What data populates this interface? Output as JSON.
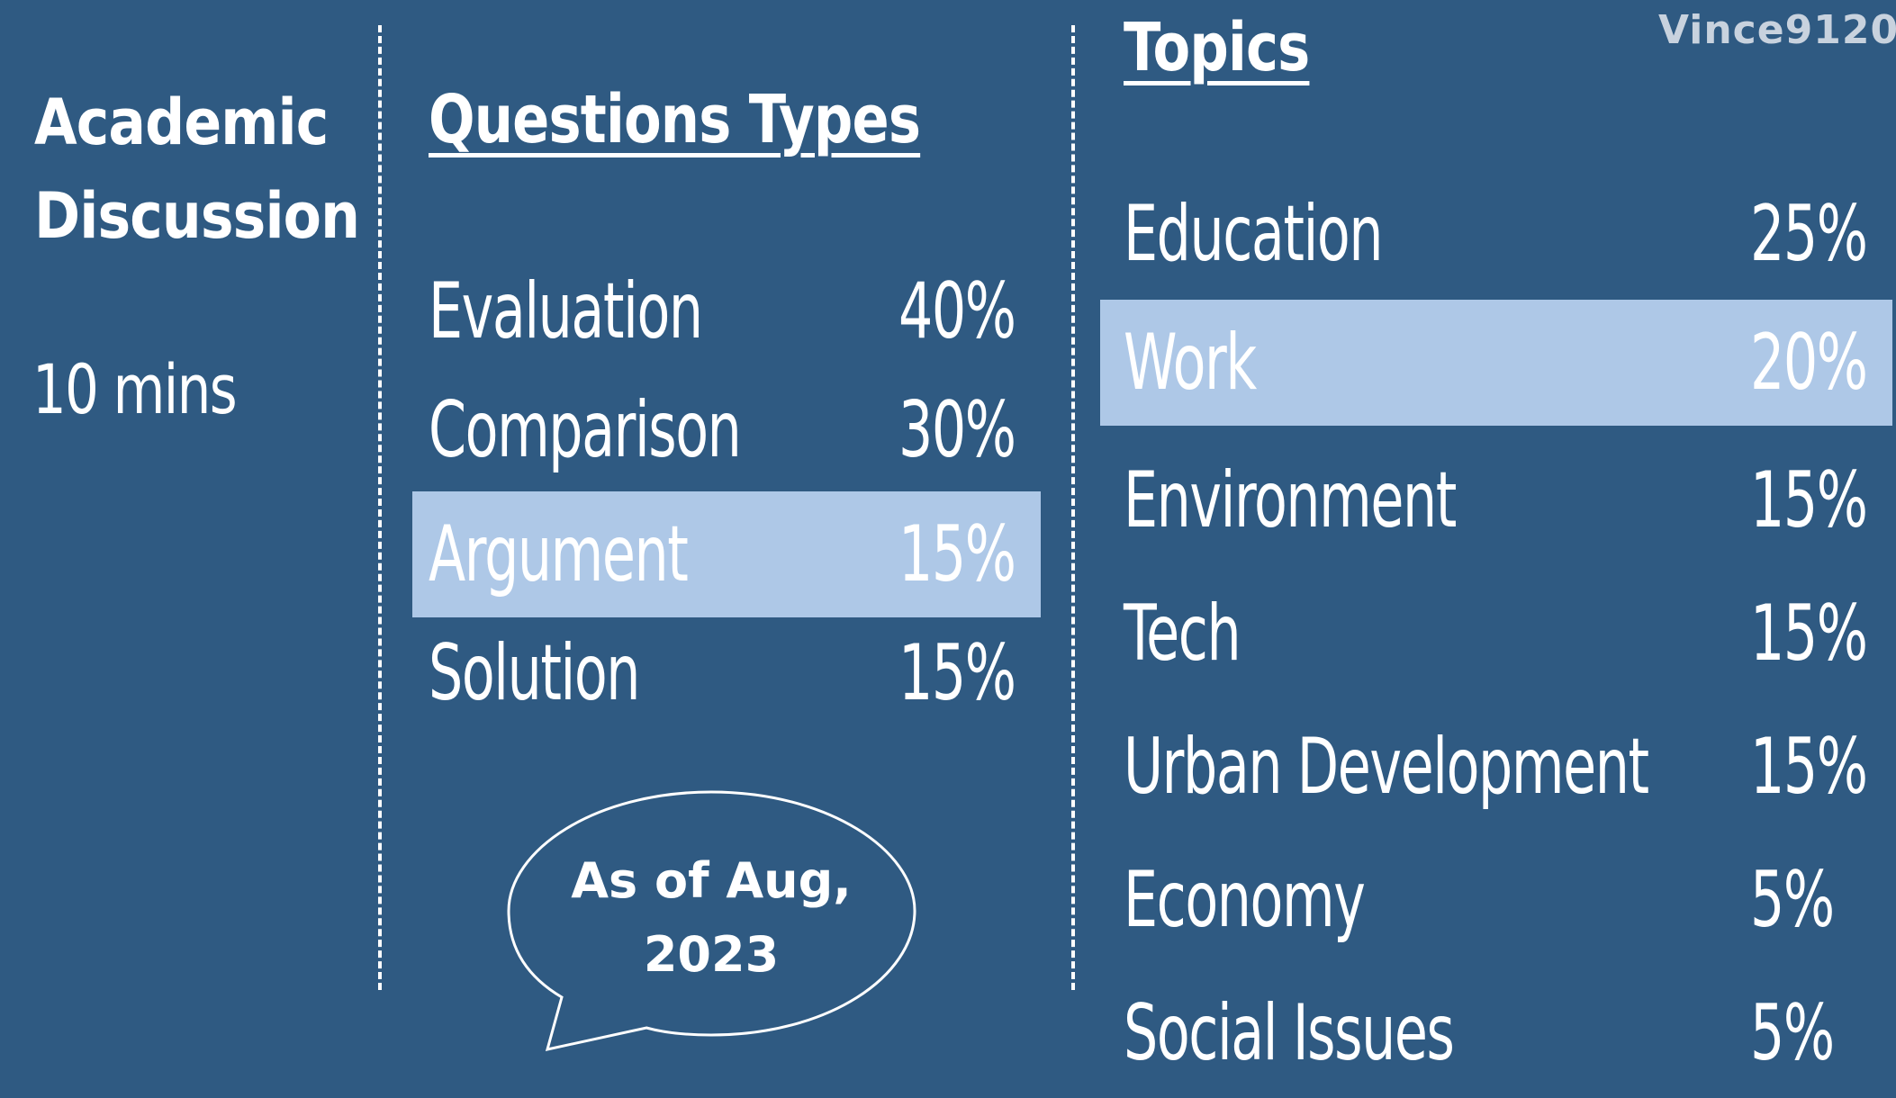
{
  "left": {
    "title_line1": "Academic",
    "title_line2": "Discussion",
    "duration": "10 mins"
  },
  "question_types": {
    "header": "Questions Types",
    "items": [
      {
        "label": "Evaluation",
        "percent": "40%"
      },
      {
        "label": "Comparison",
        "percent": "30%"
      },
      {
        "label": "Argument",
        "percent": "15%",
        "highlighted": true
      },
      {
        "label": "Solution",
        "percent": "15%"
      }
    ]
  },
  "topics": {
    "header": "Topics",
    "items": [
      {
        "label": "Education",
        "percent": "25%"
      },
      {
        "label": "Work",
        "percent": "20%",
        "highlighted": true
      },
      {
        "label": "Environment",
        "percent": "15%"
      },
      {
        "label": "Tech",
        "percent": "15%"
      },
      {
        "label": "Urban Development",
        "percent": "15%"
      },
      {
        "label": "Economy",
        "percent": "5%"
      },
      {
        "label": "Social Issues",
        "percent": "5%"
      }
    ]
  },
  "watermark": "Vince9120",
  "bubble": {
    "line1": "As of Aug,",
    "line2": "2023"
  },
  "colors": {
    "background": "#2f5a82",
    "highlight": "#aec8e7",
    "text": "#ffffff"
  }
}
